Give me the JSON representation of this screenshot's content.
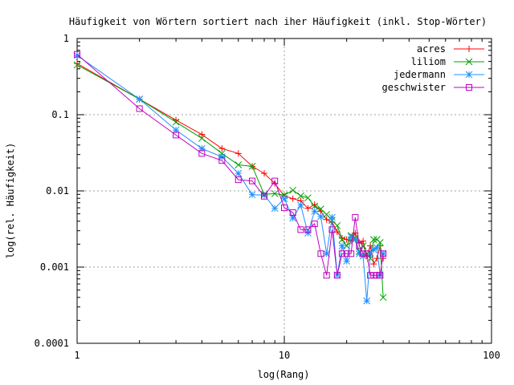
{
  "chart_data": {
    "type": "line",
    "title": "Häufigkeit von Wörtern sortiert nach iher Häufigkeit (inkl. Stop-Wörter)",
    "xlabel": "log(Rang)",
    "ylabel": "log(rel. Häufigkeit)",
    "x_scale": "log",
    "y_scale": "log",
    "xlim": [
      1,
      100
    ],
    "ylim": [
      0.0001,
      1
    ],
    "x_ticks": [
      {
        "value": 1,
        "label": "1"
      },
      {
        "value": 10,
        "label": "10"
      },
      {
        "value": 100,
        "label": "100"
      }
    ],
    "y_ticks": [
      {
        "value": 1,
        "label": "1"
      },
      {
        "value": 0.1,
        "label": "0.1"
      },
      {
        "value": 0.01,
        "label": "0.01"
      },
      {
        "value": 0.001,
        "label": "0.001"
      },
      {
        "value": 0.0001,
        "label": "0.0001"
      }
    ],
    "grid": true,
    "legend_position": "top-right",
    "series": [
      {
        "name": "acres",
        "color": "#ff0000",
        "marker": "plus",
        "x": [
          1,
          2,
          3,
          4,
          5,
          6,
          7,
          8,
          9,
          10,
          11,
          12,
          13,
          14,
          15,
          16,
          17,
          18,
          19,
          20,
          21,
          22,
          23,
          24,
          25,
          26,
          27,
          28,
          29,
          30
        ],
        "y": [
          0.47,
          0.16,
          0.085,
          0.055,
          0.036,
          0.031,
          0.021,
          0.017,
          0.0125,
          0.0086,
          0.0079,
          0.0074,
          0.0059,
          0.0066,
          0.0054,
          0.0042,
          0.0039,
          0.0029,
          0.0024,
          0.0023,
          0.0022,
          0.0028,
          0.0021,
          0.0022,
          0.0014,
          0.0019,
          0.0011,
          0.0013,
          0.0019,
          0.0013
        ]
      },
      {
        "name": "liliom",
        "color": "#00a000",
        "marker": "cross",
        "x": [
          1,
          2,
          3,
          4,
          5,
          6,
          7,
          8,
          9,
          10,
          11,
          12,
          13,
          14,
          15,
          16,
          17,
          18,
          19,
          20,
          21,
          22,
          23,
          24,
          25,
          26,
          27,
          28,
          29,
          30
        ],
        "y": [
          0.45,
          0.16,
          0.08,
          0.049,
          0.031,
          0.022,
          0.021,
          0.009,
          0.0092,
          0.0088,
          0.0102,
          0.0086,
          0.0081,
          0.0063,
          0.0058,
          0.0049,
          0.0041,
          0.0035,
          0.0023,
          0.0019,
          0.0026,
          0.0024,
          0.0016,
          0.0019,
          0.0015,
          0.0013,
          0.0023,
          0.0023,
          0.0021,
          0.0004
        ]
      },
      {
        "name": "jedermann",
        "color": "#1e90ff",
        "marker": "star",
        "x": [
          1,
          2,
          3,
          4,
          5,
          6,
          7,
          8,
          9,
          10,
          11,
          12,
          13,
          14,
          15,
          16,
          17,
          18,
          19,
          20,
          21,
          22,
          23,
          24,
          25,
          26,
          27,
          28,
          29,
          30
        ],
        "y": [
          0.6,
          0.16,
          0.063,
          0.036,
          0.028,
          0.017,
          0.0089,
          0.0088,
          0.0059,
          0.0079,
          0.0044,
          0.0065,
          0.0028,
          0.0054,
          0.0046,
          0.0015,
          0.0045,
          0.00079,
          0.0019,
          0.0012,
          0.0025,
          0.0023,
          0.0015,
          0.0014,
          0.00036,
          0.0015,
          0.0017,
          0.0018,
          0.00079,
          0.0015
        ]
      },
      {
        "name": "geschwister",
        "color": "#c000c0",
        "marker": "square",
        "x": [
          1,
          2,
          3,
          4,
          5,
          6,
          7,
          8,
          9,
          10,
          11,
          12,
          13,
          14,
          15,
          16,
          17,
          18,
          19,
          20,
          21,
          22,
          23,
          24,
          25,
          26,
          27,
          28,
          29,
          30
        ],
        "y": [
          0.62,
          0.12,
          0.054,
          0.031,
          0.025,
          0.014,
          0.0135,
          0.0085,
          0.0135,
          0.006,
          0.0052,
          0.0031,
          0.0031,
          0.0037,
          0.0015,
          0.00078,
          0.0031,
          0.00078,
          0.0015,
          0.0015,
          0.0015,
          0.0045,
          0.0019,
          0.0015,
          0.0015,
          0.00078,
          0.00078,
          0.00078,
          0.00078,
          0.0015
        ]
      }
    ]
  }
}
